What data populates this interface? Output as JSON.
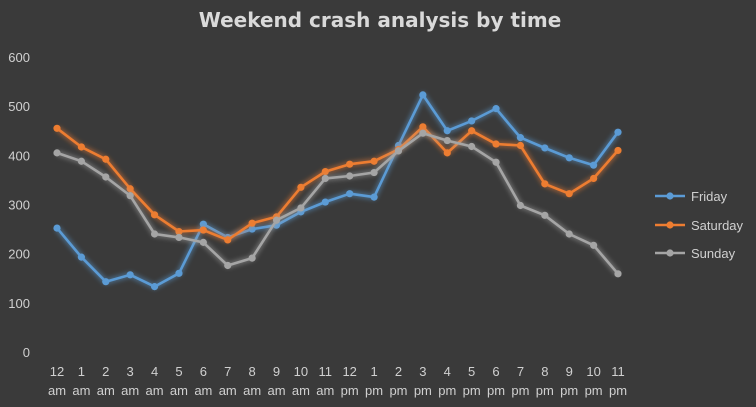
{
  "chart_data": {
    "type": "line",
    "title": "Weekend crash analysis by time",
    "xlabel": "",
    "ylabel": "",
    "ylim": [
      0,
      600
    ],
    "yticks": [
      "0",
      "100",
      "200",
      "300",
      "400",
      "500",
      "600"
    ],
    "grid": false,
    "legend_position": "right",
    "categories": [
      [
        "12",
        "am"
      ],
      [
        "1",
        "am"
      ],
      [
        "2",
        "am"
      ],
      [
        "3",
        "am"
      ],
      [
        "4",
        "am"
      ],
      [
        "5",
        "am"
      ],
      [
        "6",
        "am"
      ],
      [
        "7",
        "am"
      ],
      [
        "8",
        "am"
      ],
      [
        "9",
        "am"
      ],
      [
        "10",
        "am"
      ],
      [
        "11",
        "am"
      ],
      [
        "12",
        "pm"
      ],
      [
        "1",
        "pm"
      ],
      [
        "2",
        "pm"
      ],
      [
        "3",
        "pm"
      ],
      [
        "4",
        "pm"
      ],
      [
        "5",
        "pm"
      ],
      [
        "6",
        "pm"
      ],
      [
        "7",
        "pm"
      ],
      [
        "8",
        "pm"
      ],
      [
        "9",
        "pm"
      ],
      [
        "10",
        "pm"
      ],
      [
        "11",
        "pm"
      ]
    ],
    "series": [
      {
        "name": "Friday",
        "color": "#5b9bd5",
        "values": [
          252,
          193,
          143,
          157,
          133,
          160,
          260,
          233,
          250,
          258,
          285,
          305,
          322,
          315,
          420,
          523,
          450,
          470,
          495,
          436,
          415,
          395,
          380,
          447
        ]
      },
      {
        "name": "Saturday",
        "color": "#ed7d31",
        "values": [
          455,
          417,
          392,
          332,
          279,
          245,
          248,
          228,
          262,
          275,
          335,
          367,
          382,
          388,
          412,
          458,
          405,
          450,
          423,
          420,
          342,
          322,
          353,
          410
        ]
      },
      {
        "name": "Sunday",
        "color": "#a5a5a5",
        "values": [
          405,
          388,
          356,
          318,
          240,
          233,
          223,
          176,
          191,
          268,
          293,
          353,
          358,
          365,
          409,
          445,
          430,
          418,
          386,
          298,
          278,
          240,
          217,
          159
        ]
      }
    ]
  }
}
